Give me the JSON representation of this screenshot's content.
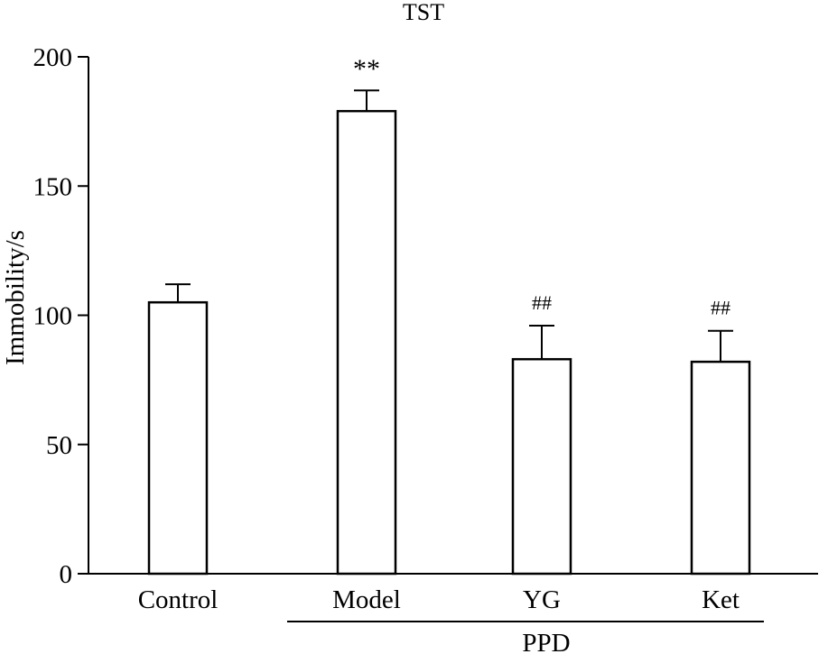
{
  "chart_data": {
    "type": "bar",
    "title": "TST",
    "xlabel": "",
    "ylabel": "Immobility/s",
    "ylim": [
      0,
      200
    ],
    "yticks": [
      0,
      50,
      100,
      150,
      200
    ],
    "categories": [
      "Control",
      "Model",
      "YG",
      "Ket"
    ],
    "values": [
      105,
      179,
      83,
      82
    ],
    "error_bars": [
      7,
      8,
      13,
      12
    ],
    "annotations": [
      "",
      "**",
      "##",
      "##"
    ],
    "group_label": "PPD",
    "grid": false,
    "legend": "none",
    "bar_fill": "#ffffff",
    "bar_stroke": "#000000"
  }
}
